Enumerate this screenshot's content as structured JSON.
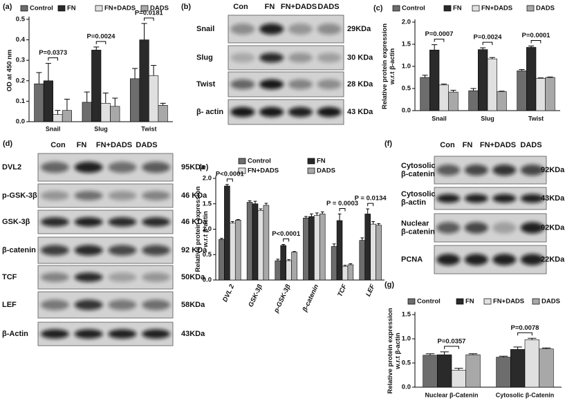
{
  "chart_data": [
    {
      "type": "bar",
      "panel": "(a)",
      "y_label": [
        "OD at 450 nm"
      ],
      "categories": [
        "Snail",
        "Slug",
        "Twist"
      ],
      "series": [
        {
          "name": "Control",
          "color": "#6d6d6d",
          "values": [
            0.185,
            0.095,
            0.21
          ],
          "errors": [
            0.055,
            0.05,
            0.05
          ]
        },
        {
          "name": "FN",
          "color": "#2a2a2a",
          "values": [
            0.2,
            0.35,
            0.4
          ],
          "errors": [
            0.085,
            0.015,
            0.08
          ]
        },
        {
          "name": "FN+DADS",
          "color": "#e0e0e0",
          "values": [
            0.035,
            0.09,
            0.225
          ],
          "errors": [
            0.02,
            0.05,
            0.05
          ]
        },
        {
          "name": "DADS",
          "color": "#a8a8a8",
          "values": [
            0.055,
            0.075,
            0.08
          ],
          "errors": [
            0.055,
            0.04,
            0.01
          ]
        }
      ],
      "ylim": [
        0,
        0.5
      ],
      "yticks": [
        {
          "value": 0,
          "label": "0.0"
        },
        0.1,
        0.2,
        0.3,
        0.4,
        0.5
      ],
      "annotations": [
        "P=0.0373",
        "P=0.0024",
        "P=0.0181"
      ]
    },
    {
      "type": "bar",
      "panel": "(c)",
      "y_label": [
        "Relative protein expression",
        "w.r.t β-actin"
      ],
      "categories": [
        "Snail",
        "Slug",
        "Twist"
      ],
      "series": [
        {
          "name": "Control",
          "color": "#6d6d6d",
          "values": [
            0.75,
            0.45,
            0.9
          ],
          "errors": [
            0.05,
            0.05,
            0.03
          ]
        },
        {
          "name": "FN",
          "color": "#2a2a2a",
          "values": [
            1.37,
            1.38,
            1.43
          ],
          "errors": [
            0.12,
            0.04,
            0.03
          ]
        },
        {
          "name": "FN+DADS",
          "color": "#e0e0e0",
          "values": [
            0.58,
            1.17,
            0.73
          ],
          "errors": [
            0.02,
            0.03,
            0.01
          ]
        },
        {
          "name": "DADS",
          "color": "#a8a8a8",
          "values": [
            0.42,
            0.43,
            0.75
          ],
          "errors": [
            0.04,
            0.01,
            0.01
          ]
        }
      ],
      "ylim": [
        0,
        2
      ],
      "yticks": [
        {
          "value": 0,
          "label": "0.0"
        },
        0.5,
        {
          "value": 1,
          "label": "1.0"
        },
        1.5,
        {
          "value": 2,
          "label": "2.0"
        }
      ],
      "annotations": [
        "P=0.0007",
        "P=0.0024",
        "P=0.0001"
      ]
    },
    {
      "type": "bar",
      "panel": "(e)",
      "y_label": [
        "Relative protein expression",
        "w.r.t β-actin"
      ],
      "categories": [
        "DVL 2",
        "GSK-3β",
        "p-GSK-3β",
        "β-catenin",
        "TCF",
        "LEF"
      ],
      "series": [
        {
          "name": "Control",
          "color": "#6d6d6d",
          "values": [
            0.8,
            1.53,
            0.38,
            1.22,
            0.66,
            0.78
          ],
          "errors": [
            0.02,
            0.03,
            0.03,
            0.03,
            0.05,
            0.05
          ]
        },
        {
          "name": "FN",
          "color": "#2a2a2a",
          "values": [
            1.85,
            1.5,
            0.68,
            1.25,
            1.17,
            1.3
          ],
          "errors": [
            0.03,
            0.05,
            0.02,
            0.05,
            0.13,
            0.1
          ]
        },
        {
          "name": "FN+DADS",
          "color": "#e0e0e0",
          "values": [
            1.12,
            1.37,
            0.38,
            1.27,
            0.27,
            1.1
          ],
          "errors": [
            0.03,
            0.03,
            0.02,
            0.05,
            0.02,
            0.05
          ]
        },
        {
          "name": "DADS",
          "color": "#a8a8a8",
          "values": [
            1.18,
            1.47,
            0.55,
            1.3,
            0.3,
            1.08
          ],
          "errors": [
            0.01,
            0.04,
            0.01,
            0.04,
            0.02,
            0.03
          ]
        }
      ],
      "ylim": [
        0,
        2
      ],
      "yticks": [
        {
          "value": 0,
          "label": "0.0"
        },
        0.5,
        {
          "value": 1,
          "label": "1.0"
        },
        1.5,
        {
          "value": 2,
          "label": "2.0"
        }
      ],
      "annotations": [
        "P<0.0001",
        "P<0.0001",
        "P = 0.0003",
        "P = 0.0134"
      ]
    },
    {
      "type": "bar",
      "panel": "(g)",
      "y_label": [
        "Relative protein expression",
        "w.r.t β-actin"
      ],
      "categories": [
        "Nuclear β-Catenin",
        "Cytosolic β-Catenin"
      ],
      "series": [
        {
          "name": "Control",
          "color": "#6d6d6d",
          "values": [
            0.66,
            0.62
          ],
          "errors": [
            0.03,
            0.02
          ]
        },
        {
          "name": "FN",
          "color": "#2a2a2a",
          "values": [
            0.67,
            0.78
          ],
          "errors": [
            0.06,
            0.05
          ]
        },
        {
          "name": "FN+DADS",
          "color": "#e0e0e0",
          "values": [
            0.35,
            0.98
          ],
          "errors": [
            0.04,
            0.03
          ]
        },
        {
          "name": "DADS",
          "color": "#a8a8a8",
          "values": [
            0.67,
            0.79
          ],
          "errors": [
            0.02,
            0.02
          ]
        }
      ],
      "ylim": [
        0,
        1.5
      ],
      "yticks": [
        {
          "value": 0,
          "label": "0.0"
        },
        0.5,
        {
          "value": 1,
          "label": "1.0"
        },
        1.5
      ],
      "annotations": [
        "P=0.0357",
        "P=0.0078"
      ]
    }
  ],
  "blots": [
    {
      "panel": "(b)",
      "lanes": [
        "Con",
        "FN",
        "FN+DADS",
        "DADS"
      ],
      "rows": [
        {
          "label": [
            "Snail"
          ],
          "size": "29KDa"
        },
        {
          "label": [
            "Slug"
          ],
          "size": "30 KDa"
        },
        {
          "label": [
            "Twist"
          ],
          "size": "28 KDa"
        },
        {
          "label": [
            "β- actin"
          ],
          "size": "43 KDa"
        }
      ]
    },
    {
      "panel": "(d)",
      "lanes": [
        "Con",
        "FN",
        "FN+DADS",
        "DADS"
      ],
      "rows": [
        {
          "label": [
            "DVL2"
          ],
          "size": "95KDa"
        },
        {
          "label": [
            "p-GSK-3β"
          ],
          "size": "46 KDa"
        },
        {
          "label": [
            "GSK-3β"
          ],
          "size": "46 KDa"
        },
        {
          "label": [
            "β-catenin"
          ],
          "size": "92 KDa"
        },
        {
          "label": [
            "TCF"
          ],
          "size": "50KDa"
        },
        {
          "label": [
            "LEF"
          ],
          "size": "58KDa"
        },
        {
          "label": [
            "β-Actin"
          ],
          "size": "43KDa"
        }
      ]
    },
    {
      "panel": "(f)",
      "lanes": [
        "Con",
        "FN",
        "FN+DADS",
        "DADS"
      ],
      "rows": [
        {
          "label": [
            "Cytosolic",
            "β-catenin"
          ],
          "size": "92KDa"
        },
        {
          "label": [
            "Cytosolic",
            "β-actin"
          ],
          "size": "43KDa"
        },
        {
          "label": [
            "Nuclear",
            "β-catenin"
          ],
          "size": "92KDa"
        },
        {
          "label": [
            "PCNA"
          ],
          "size": "22KDa"
        }
      ]
    }
  ]
}
